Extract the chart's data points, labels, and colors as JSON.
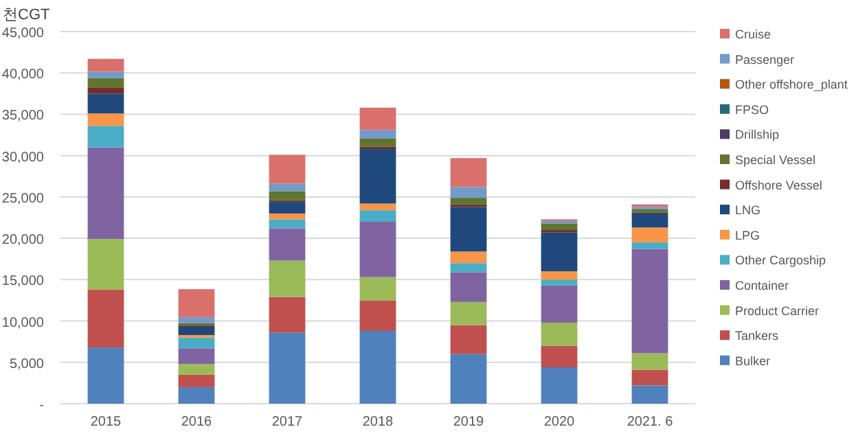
{
  "chart_data": {
    "type": "bar",
    "stacked": true,
    "ylabel": "천CGT",
    "categories": [
      "2015",
      "2016",
      "2017",
      "2018",
      "2019",
      "2020",
      "2021. 6"
    ],
    "ylim": [
      0,
      45000
    ],
    "yticks": [
      {
        "value": 0,
        "label": "-"
      },
      {
        "value": 5000,
        "label": "5,000"
      },
      {
        "value": 10000,
        "label": "10,000"
      },
      {
        "value": 15000,
        "label": "15,000"
      },
      {
        "value": 20000,
        "label": "20,000"
      },
      {
        "value": 25000,
        "label": "25,000"
      },
      {
        "value": 30000,
        "label": "30,000"
      },
      {
        "value": 35000,
        "label": "35,000"
      },
      {
        "value": 40000,
        "label": "40,000"
      },
      {
        "value": 45000,
        "label": "45,000"
      }
    ],
    "grid": "y",
    "legend": "right",
    "series": [
      {
        "name": "Bulker",
        "color": "#4f81bd",
        "values": [
          6800,
          2000,
          8600,
          8800,
          6000,
          4400,
          2200
        ]
      },
      {
        "name": "Tankers",
        "color": "#c0504d",
        "values": [
          7000,
          1500,
          4300,
          3700,
          3500,
          2600,
          1900
        ]
      },
      {
        "name": "Product Carrier",
        "color": "#9bbb59",
        "values": [
          6100,
          1300,
          4400,
          2800,
          2800,
          2800,
          2000
        ]
      },
      {
        "name": "Container",
        "color": "#8064a2",
        "values": [
          11100,
          1900,
          3900,
          6700,
          3600,
          4500,
          12600
        ]
      },
      {
        "name": "Other Cargoship",
        "color": "#4bacc6",
        "values": [
          2600,
          1300,
          1100,
          1400,
          1100,
          700,
          800
        ]
      },
      {
        "name": "LPG",
        "color": "#f79646",
        "values": [
          1500,
          300,
          700,
          800,
          1400,
          1000,
          1800
        ]
      },
      {
        "name": "LNG",
        "color": "#1f497d",
        "values": [
          2400,
          1000,
          1400,
          6600,
          5400,
          4700,
          1700
        ]
      },
      {
        "name": "Offshore Vessel",
        "color": "#772c2a",
        "values": [
          700,
          150,
          200,
          300,
          300,
          300,
          100
        ]
      },
      {
        "name": "Special Vessel",
        "color": "#5f7530",
        "values": [
          1200,
          300,
          1100,
          1000,
          800,
          800,
          400
        ]
      },
      {
        "name": "Drillship",
        "color": "#4d3b62",
        "values": [
          0,
          0,
          0,
          0,
          0,
          0,
          0
        ]
      },
      {
        "name": "FPSO",
        "color": "#276a7c",
        "values": [
          0,
          0,
          0,
          0,
          0,
          0,
          0
        ]
      },
      {
        "name": "Other offshore_plant",
        "color": "#b65708",
        "values": [
          0,
          0,
          0,
          0,
          0,
          0,
          0
        ]
      },
      {
        "name": "Passenger",
        "color": "#729aca",
        "values": [
          750,
          700,
          900,
          1000,
          1300,
          300,
          300
        ]
      },
      {
        "name": "Cruise",
        "color": "#d9706c",
        "values": [
          1550,
          3400,
          3500,
          2700,
          3500,
          200,
          300
        ]
      }
    ]
  }
}
